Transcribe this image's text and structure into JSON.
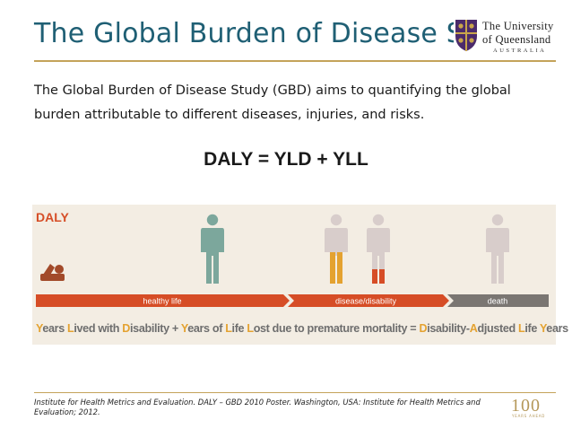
{
  "header": {
    "title": "The Global Burden of Disease Stud",
    "logo": {
      "line1": "The University",
      "line2": "of Queensland",
      "line3": "AUSTRALIA",
      "icon": "uq-crest-icon"
    }
  },
  "intro": "The Global Burden of Disease Study (GBD)  aims to quantifying the global burden attributable to different diseases, injuries, and risks.",
  "formula": "DALY = YLD + YLL",
  "infographic": {
    "label": "DALY",
    "timeline": {
      "segments": [
        "healthy life",
        "disease/disability",
        "death"
      ]
    },
    "legend": [
      {
        "text": "Y",
        "hl": true
      },
      {
        "text": "ears ",
        "hl": false
      },
      {
        "text": "L",
        "hl": true
      },
      {
        "text": "ived with ",
        "hl": false
      },
      {
        "text": "D",
        "hl": true
      },
      {
        "text": "isability + ",
        "hl": false
      },
      {
        "text": "Y",
        "hl": true
      },
      {
        "text": "ears of ",
        "hl": false
      },
      {
        "text": "L",
        "hl": true
      },
      {
        "text": "ife ",
        "hl": false
      },
      {
        "text": "L",
        "hl": true
      },
      {
        "text": "ost due to premature mortality = ",
        "hl": false
      },
      {
        "text": "D",
        "hl": true
      },
      {
        "text": "isability-",
        "hl": false
      },
      {
        "text": "A",
        "hl": true
      },
      {
        "text": "djusted ",
        "hl": false
      },
      {
        "text": "L",
        "hl": true
      },
      {
        "text": "ife ",
        "hl": false
      },
      {
        "text": "Y",
        "hl": true
      },
      {
        "text": "ears",
        "hl": false
      }
    ],
    "colors": {
      "accent": "#d64d26",
      "highlight": "#e4a230",
      "healthy": "#7ca79c",
      "neutral": "#d8cdcb",
      "timeline": "#d64d26",
      "death": "#7a7672"
    }
  },
  "footer": {
    "citation": "Institute for Health Metrics and Evaluation. DALY – GBD 2010 Poster. Washington, USA: Institute for Health Metrics and Evaluation; 2012.",
    "badge": "100",
    "badge_sub": "YEARS AHEAD"
  }
}
